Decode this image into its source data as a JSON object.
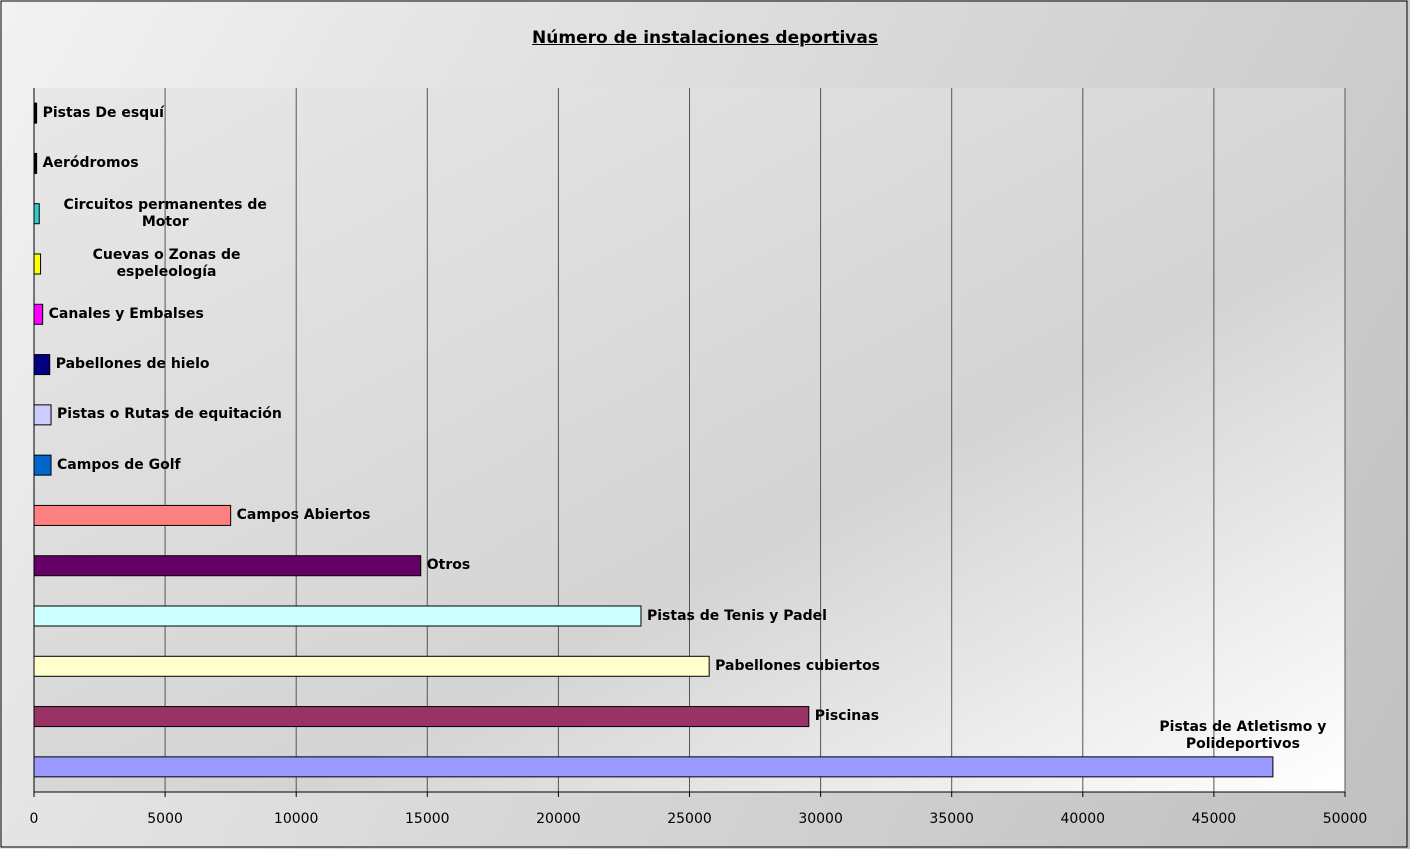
{
  "chart_data": {
    "type": "bar",
    "orientation": "horizontal",
    "title": "Número de instalaciones deportivas",
    "categories": [
      "Pistas De esquí",
      "Aeródromos",
      "Circuitos permanentes de Motor",
      "Cuevas o Zonas de espeleología",
      "Canales y Embalses",
      "Pabellones de hielo",
      "Pistas o Rutas de equitación",
      "Campos de Golf",
      "Campos Abiertos",
      "Otros",
      "Pistas de Tenis y Padel",
      "Pabellones cubiertos",
      "Piscinas",
      "Pistas de Atletismo y Polideportivos"
    ],
    "values": [
      100,
      100,
      200,
      250,
      330,
      600,
      650,
      650,
      7500,
      14750,
      23150,
      25750,
      29550,
      47250
    ],
    "colors": [
      "#000000",
      "#000000",
      "#33cccc",
      "#ffff00",
      "#ff00ff",
      "#000080",
      "#ccccff",
      "#0066cc",
      "#ff8080",
      "#660066",
      "#ccffff",
      "#ffffcc",
      "#993366",
      "#9999ff"
    ],
    "xlim": [
      0,
      50000
    ],
    "xticks": [
      0,
      5000,
      10000,
      15000,
      20000,
      25000,
      30000,
      35000,
      40000,
      45000,
      50000
    ],
    "grid": true
  }
}
